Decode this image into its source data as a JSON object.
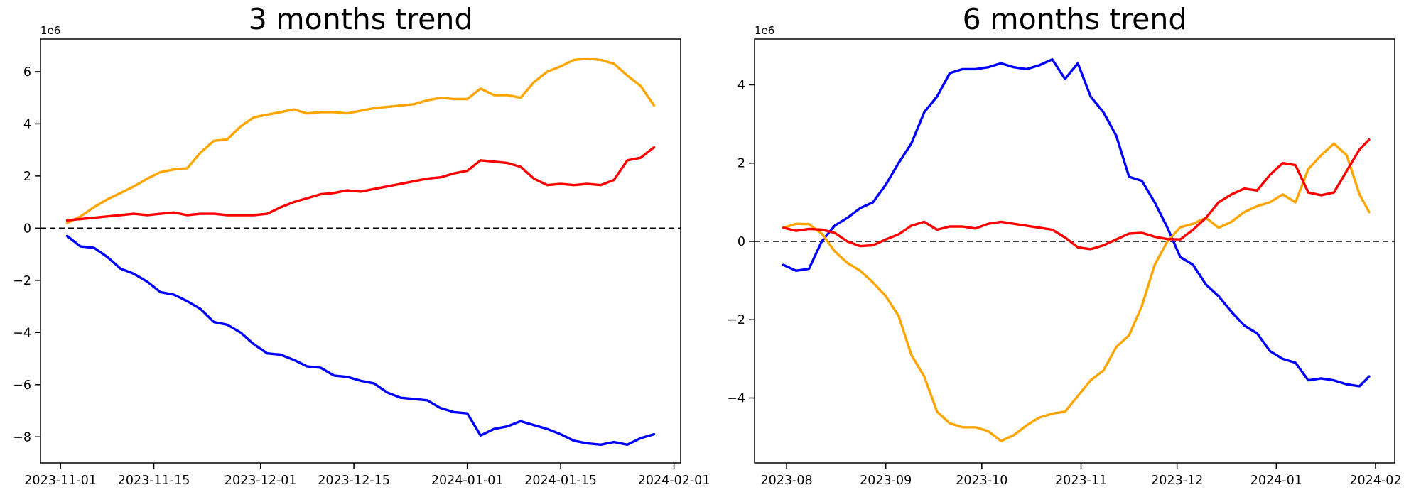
{
  "figure": {
    "background": "#ffffff",
    "text_color": "#000000",
    "zero_line_color": "#000000",
    "spine_color": "#000000"
  },
  "chart_data": [
    {
      "type": "line",
      "title": "3 months trend",
      "offset_label": "1e6",
      "xlabel": "",
      "ylabel": "",
      "legend": "none",
      "grid": false,
      "zero_line_dashed": true,
      "unit_multiplier": 1000000,
      "ylim": [
        -9.0,
        7.25
      ],
      "y_tick_values": [
        6,
        4,
        2,
        0,
        -2,
        -4,
        -6,
        -8
      ],
      "x_tick_labels": [
        "2023-11-01",
        "2023-11-15",
        "2023-12-01",
        "2023-12-15",
        "2024-01-01",
        "2024-01-15",
        "2024-02-01"
      ],
      "xlim_dates": [
        "2023-10-29",
        "2024-02-02"
      ],
      "x_dates": [
        "2023-11-02",
        "2023-11-04",
        "2023-11-06",
        "2023-11-08",
        "2023-11-10",
        "2023-11-12",
        "2023-11-14",
        "2023-11-16",
        "2023-11-18",
        "2023-11-20",
        "2023-11-22",
        "2023-11-24",
        "2023-11-26",
        "2023-11-28",
        "2023-11-30",
        "2023-12-02",
        "2023-12-04",
        "2023-12-06",
        "2023-12-08",
        "2023-12-10",
        "2023-12-12",
        "2023-12-14",
        "2023-12-16",
        "2023-12-18",
        "2023-12-20",
        "2023-12-22",
        "2023-12-24",
        "2023-12-26",
        "2023-12-28",
        "2023-12-30",
        "2024-01-01",
        "2024-01-03",
        "2024-01-05",
        "2024-01-07",
        "2024-01-09",
        "2024-01-11",
        "2024-01-13",
        "2024-01-15",
        "2024-01-17",
        "2024-01-19",
        "2024-01-21",
        "2024-01-23",
        "2024-01-25",
        "2024-01-27",
        "2024-01-29"
      ],
      "series": [
        {
          "name": "orange",
          "color": "#ffa500",
          "values": [
            0.2,
            0.45,
            0.8,
            1.1,
            1.35,
            1.6,
            1.9,
            2.15,
            2.25,
            2.3,
            2.9,
            3.35,
            3.4,
            3.9,
            4.25,
            4.35,
            4.45,
            4.55,
            4.4,
            4.45,
            4.45,
            4.4,
            4.5,
            4.6,
            4.65,
            4.7,
            4.75,
            4.9,
            5.0,
            4.95,
            4.95,
            5.35,
            5.1,
            5.1,
            5.0,
            5.6,
            6.0,
            6.2,
            6.45,
            6.5,
            6.45,
            6.3,
            5.85,
            5.45,
            4.7
          ]
        },
        {
          "name": "red",
          "color": "#ff0000",
          "values": [
            0.3,
            0.35,
            0.4,
            0.45,
            0.5,
            0.55,
            0.5,
            0.55,
            0.6,
            0.5,
            0.55,
            0.55,
            0.5,
            0.5,
            0.5,
            0.55,
            0.8,
            1.0,
            1.15,
            1.3,
            1.35,
            1.45,
            1.4,
            1.5,
            1.6,
            1.7,
            1.8,
            1.9,
            1.95,
            2.1,
            2.2,
            2.6,
            2.55,
            2.5,
            2.35,
            1.9,
            1.65,
            1.7,
            1.65,
            1.7,
            1.65,
            1.85,
            2.6,
            2.7,
            3.1
          ]
        },
        {
          "name": "blue",
          "color": "#0000ff",
          "values": [
            -0.3,
            -0.7,
            -0.75,
            -1.1,
            -1.55,
            -1.75,
            -2.05,
            -2.45,
            -2.55,
            -2.8,
            -3.1,
            -3.6,
            -3.7,
            -4.0,
            -4.45,
            -4.8,
            -4.85,
            -5.05,
            -5.3,
            -5.35,
            -5.65,
            -5.7,
            -5.85,
            -5.95,
            -6.3,
            -6.5,
            -6.55,
            -6.6,
            -6.9,
            -7.05,
            -7.1,
            -7.95,
            -7.7,
            -7.6,
            -7.4,
            -7.55,
            -7.7,
            -7.9,
            -8.15,
            -8.25,
            -8.3,
            -8.2,
            -8.3,
            -8.05,
            -7.9
          ]
        }
      ]
    },
    {
      "type": "line",
      "title": "6 months trend",
      "offset_label": "1e6",
      "xlabel": "",
      "ylabel": "",
      "legend": "none",
      "grid": false,
      "zero_line_dashed": true,
      "unit_multiplier": 1000000,
      "ylim": [
        -5.66,
        5.17
      ],
      "y_tick_values": [
        4,
        2,
        0,
        -2,
        -4
      ],
      "x_tick_labels": [
        "2023-08",
        "2023-09",
        "2023-10",
        "2023-11",
        "2023-12",
        "2024-01",
        "2024-02"
      ],
      "xlim_dates": [
        "2023-07-22",
        "2024-02-07"
      ],
      "x_dates": [
        "2023-07-31",
        "2023-08-04",
        "2023-08-08",
        "2023-08-12",
        "2023-08-16",
        "2023-08-20",
        "2023-08-24",
        "2023-08-28",
        "2023-09-01",
        "2023-09-05",
        "2023-09-09",
        "2023-09-13",
        "2023-09-17",
        "2023-09-21",
        "2023-09-25",
        "2023-09-29",
        "2023-10-03",
        "2023-10-07",
        "2023-10-11",
        "2023-10-15",
        "2023-10-19",
        "2023-10-23",
        "2023-10-27",
        "2023-10-31",
        "2023-11-04",
        "2023-11-08",
        "2023-11-12",
        "2023-11-16",
        "2023-11-20",
        "2023-11-24",
        "2023-11-28",
        "2023-12-02",
        "2023-12-06",
        "2023-12-10",
        "2023-12-14",
        "2023-12-18",
        "2023-12-22",
        "2023-12-26",
        "2023-12-30",
        "2024-01-03",
        "2024-01-07",
        "2024-01-11",
        "2024-01-15",
        "2024-01-19",
        "2024-01-23",
        "2024-01-27",
        "2024-01-30"
      ],
      "series": [
        {
          "name": "blue",
          "color": "#0000ff",
          "values": [
            -0.6,
            -0.75,
            -0.7,
            0.0,
            0.4,
            0.6,
            0.85,
            1.0,
            1.45,
            2.0,
            2.5,
            3.3,
            3.7,
            4.3,
            4.4,
            4.4,
            4.45,
            4.55,
            4.45,
            4.4,
            4.5,
            4.65,
            4.15,
            4.55,
            3.7,
            3.3,
            2.7,
            1.65,
            1.55,
            1.0,
            0.35,
            -0.4,
            -0.6,
            -1.1,
            -1.4,
            -1.8,
            -2.15,
            -2.35,
            -2.8,
            -3.0,
            -3.1,
            -3.55,
            -3.5,
            -3.55,
            -3.65,
            -3.7,
            -3.45
          ]
        },
        {
          "name": "orange",
          "color": "#ffa500",
          "values": [
            0.35,
            0.45,
            0.44,
            0.2,
            -0.25,
            -0.55,
            -0.75,
            -1.05,
            -1.4,
            -1.9,
            -2.9,
            -3.45,
            -4.35,
            -4.65,
            -4.75,
            -4.75,
            -4.85,
            -5.1,
            -4.95,
            -4.7,
            -4.5,
            -4.4,
            -4.35,
            -3.95,
            -3.55,
            -3.3,
            -2.7,
            -2.4,
            -1.65,
            -0.6,
            0.0,
            0.36,
            0.45,
            0.6,
            0.35,
            0.5,
            0.75,
            0.9,
            1.0,
            1.2,
            1.0,
            1.85,
            2.2,
            2.5,
            2.2,
            1.2,
            0.75
          ]
        },
        {
          "name": "red",
          "color": "#ff0000",
          "values": [
            0.35,
            0.27,
            0.32,
            0.3,
            0.22,
            0.0,
            -0.12,
            -0.1,
            0.05,
            0.18,
            0.4,
            0.5,
            0.3,
            0.38,
            0.38,
            0.33,
            0.45,
            0.5,
            0.45,
            0.4,
            0.35,
            0.3,
            0.1,
            -0.15,
            -0.2,
            -0.1,
            0.05,
            0.2,
            0.22,
            0.12,
            0.06,
            0.05,
            0.3,
            0.6,
            1.0,
            1.2,
            1.35,
            1.3,
            1.7,
            2.0,
            1.95,
            1.25,
            1.18,
            1.25,
            1.8,
            2.35,
            2.6
          ]
        }
      ]
    }
  ]
}
